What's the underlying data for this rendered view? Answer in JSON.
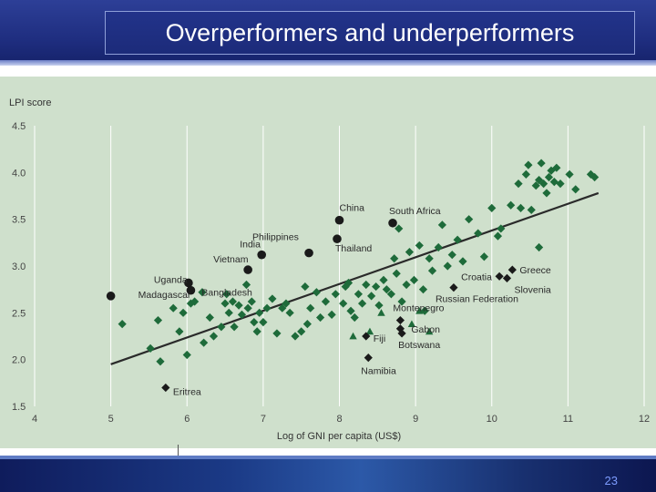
{
  "slide": {
    "title": "Overperformers and underperformers",
    "page_number": "23"
  },
  "colors": {
    "overperformer": "#1e6b3a",
    "underperformer": "#1a1a1a",
    "trend": "#2a2a2a",
    "background": "#cfe0cc"
  },
  "chart_data": {
    "type": "scatter",
    "ylabel": "LPI score",
    "xlabel": "Log of GNI per capita (US$)",
    "xlim": [
      4,
      12
    ],
    "ylim": [
      1.5,
      4.5
    ],
    "x_ticks": [
      4,
      5,
      6,
      7,
      8,
      9,
      10,
      11,
      12
    ],
    "y_ticks": [
      1.5,
      2.0,
      2.5,
      3.0,
      3.5,
      4.0,
      4.5
    ],
    "x_tick_labels": [
      "4",
      "5",
      "6",
      "7",
      "8",
      "9",
      "10",
      "11",
      "12"
    ],
    "y_tick_labels": [
      "1.5",
      "2.0",
      "2.5",
      "3.0",
      "3.5",
      "4.0",
      "4.5"
    ],
    "grid": "vertical",
    "trend_line": {
      "x": [
        5.0,
        11.4
      ],
      "y": [
        1.95,
        3.78
      ]
    },
    "labeled_points": [
      {
        "name": "China",
        "x": 8.0,
        "y": 3.49,
        "marker": "circle"
      },
      {
        "name": "South Africa",
        "x": 8.7,
        "y": 3.46,
        "marker": "circle"
      },
      {
        "name": "Philippines",
        "x": 7.6,
        "y": 3.14,
        "marker": "circle"
      },
      {
        "name": "Thailand",
        "x": 7.97,
        "y": 3.29,
        "marker": "circle"
      },
      {
        "name": "India",
        "x": 6.98,
        "y": 3.12,
        "marker": "circle"
      },
      {
        "name": "Vietnam",
        "x": 6.8,
        "y": 2.96,
        "marker": "circle"
      },
      {
        "name": "Uganda",
        "x": 6.02,
        "y": 2.82,
        "marker": "circle"
      },
      {
        "name": "Bangladesh",
        "x": 6.05,
        "y": 2.74,
        "marker": "circle"
      },
      {
        "name": "Madagascar",
        "x": 5.0,
        "y": 2.68,
        "marker": "circle"
      },
      {
        "name": "Croatia",
        "x": 10.1,
        "y": 2.89,
        "marker": "diamond"
      },
      {
        "name": "Greece",
        "x": 10.27,
        "y": 2.96,
        "marker": "diamond"
      },
      {
        "name": "Slovenia",
        "x": 10.2,
        "y": 2.87,
        "marker": "diamond"
      },
      {
        "name": "Russian Federation",
        "x": 9.5,
        "y": 2.77,
        "marker": "diamond"
      },
      {
        "name": "Montenegro",
        "x": 8.8,
        "y": 2.42,
        "marker": "diamond"
      },
      {
        "name": "Gabon",
        "x": 8.8,
        "y": 2.33,
        "marker": "diamond"
      },
      {
        "name": "Botswana",
        "x": 8.82,
        "y": 2.28,
        "marker": "diamond"
      },
      {
        "name": "Fiji",
        "x": 8.35,
        "y": 2.25,
        "marker": "diamond"
      },
      {
        "name": "Namibia",
        "x": 8.38,
        "y": 2.02,
        "marker": "diamond"
      },
      {
        "name": "Eritrea",
        "x": 5.72,
        "y": 1.7,
        "marker": "diamond"
      }
    ],
    "series": [
      {
        "name": "",
        "marker": "diamond",
        "points": [
          [
            5.15,
            2.38
          ],
          [
            5.52,
            2.12
          ],
          [
            5.62,
            2.42
          ],
          [
            5.65,
            1.98
          ],
          [
            5.82,
            2.55
          ],
          [
            5.9,
            2.3
          ],
          [
            5.95,
            2.5
          ],
          [
            6.0,
            2.05
          ],
          [
            6.05,
            2.6
          ],
          [
            6.1,
            2.62
          ],
          [
            6.2,
            2.72
          ],
          [
            6.22,
            2.18
          ],
          [
            6.3,
            2.45
          ],
          [
            6.35,
            2.25
          ],
          [
            6.45,
            2.35
          ],
          [
            6.5,
            2.6
          ],
          [
            6.52,
            2.7
          ],
          [
            6.55,
            2.5
          ],
          [
            6.6,
            2.62
          ],
          [
            6.62,
            2.35
          ],
          [
            6.68,
            2.58
          ],
          [
            6.72,
            2.48
          ],
          [
            6.78,
            2.8
          ],
          [
            6.8,
            2.55
          ],
          [
            6.85,
            2.62
          ],
          [
            6.88,
            2.4
          ],
          [
            6.92,
            2.3
          ],
          [
            6.95,
            2.5
          ],
          [
            7.0,
            2.4
          ],
          [
            7.05,
            2.55
          ],
          [
            7.12,
            2.65
          ],
          [
            7.18,
            2.28
          ],
          [
            7.25,
            2.55
          ],
          [
            7.3,
            2.6
          ],
          [
            7.35,
            2.5
          ],
          [
            7.42,
            2.25
          ],
          [
            7.5,
            2.3
          ],
          [
            7.55,
            2.78
          ],
          [
            7.58,
            2.38
          ],
          [
            7.62,
            2.55
          ],
          [
            7.7,
            2.72
          ],
          [
            7.75,
            2.45
          ],
          [
            7.82,
            2.62
          ],
          [
            7.9,
            2.48
          ],
          [
            7.95,
            2.7
          ],
          [
            8.05,
            2.6
          ],
          [
            8.08,
            2.78
          ],
          [
            8.12,
            2.82
          ],
          [
            8.15,
            2.52
          ],
          [
            8.2,
            2.45
          ],
          [
            8.25,
            2.7
          ],
          [
            8.3,
            2.6
          ],
          [
            8.35,
            2.8
          ],
          [
            8.42,
            2.68
          ],
          [
            8.48,
            2.78
          ],
          [
            8.52,
            2.58
          ],
          [
            8.58,
            2.85
          ],
          [
            8.62,
            2.75
          ],
          [
            8.68,
            2.7
          ],
          [
            8.72,
            3.08
          ],
          [
            8.75,
            2.92
          ],
          [
            8.78,
            3.4
          ],
          [
            8.82,
            2.62
          ],
          [
            8.88,
            2.8
          ],
          [
            8.92,
            3.15
          ],
          [
            8.98,
            2.85
          ],
          [
            9.05,
            3.22
          ],
          [
            9.1,
            2.75
          ],
          [
            9.12,
            2.52
          ],
          [
            9.18,
            3.08
          ],
          [
            9.22,
            2.95
          ],
          [
            9.3,
            3.2
          ],
          [
            9.35,
            3.44
          ],
          [
            9.42,
            3.0
          ],
          [
            9.48,
            3.12
          ],
          [
            9.55,
            3.28
          ],
          [
            9.62,
            3.05
          ],
          [
            9.7,
            3.5
          ],
          [
            9.82,
            3.35
          ],
          [
            9.9,
            3.1
          ],
          [
            10.0,
            3.62
          ],
          [
            10.08,
            3.32
          ],
          [
            10.12,
            3.4
          ],
          [
            10.25,
            3.65
          ],
          [
            10.35,
            3.88
          ],
          [
            10.38,
            3.62
          ],
          [
            10.45,
            3.98
          ],
          [
            10.48,
            4.08
          ],
          [
            10.52,
            3.6
          ],
          [
            10.58,
            3.86
          ],
          [
            10.62,
            3.92
          ],
          [
            10.65,
            4.1
          ],
          [
            10.68,
            3.88
          ],
          [
            10.72,
            3.78
          ],
          [
            10.75,
            3.95
          ],
          [
            10.78,
            4.02
          ],
          [
            10.82,
            3.9
          ],
          [
            10.85,
            4.05
          ],
          [
            10.9,
            3.88
          ],
          [
            11.02,
            3.98
          ],
          [
            11.1,
            3.82
          ],
          [
            11.3,
            3.98
          ],
          [
            11.35,
            3.95
          ],
          [
            10.62,
            3.2
          ]
        ]
      },
      {
        "name": "",
        "marker": "triangle",
        "points": [
          [
            8.18,
            2.25
          ],
          [
            8.4,
            2.3
          ],
          [
            8.55,
            2.5
          ],
          [
            9.18,
            2.3
          ],
          [
            9.05,
            2.52
          ],
          [
            8.95,
            2.38
          ]
        ]
      }
    ]
  }
}
